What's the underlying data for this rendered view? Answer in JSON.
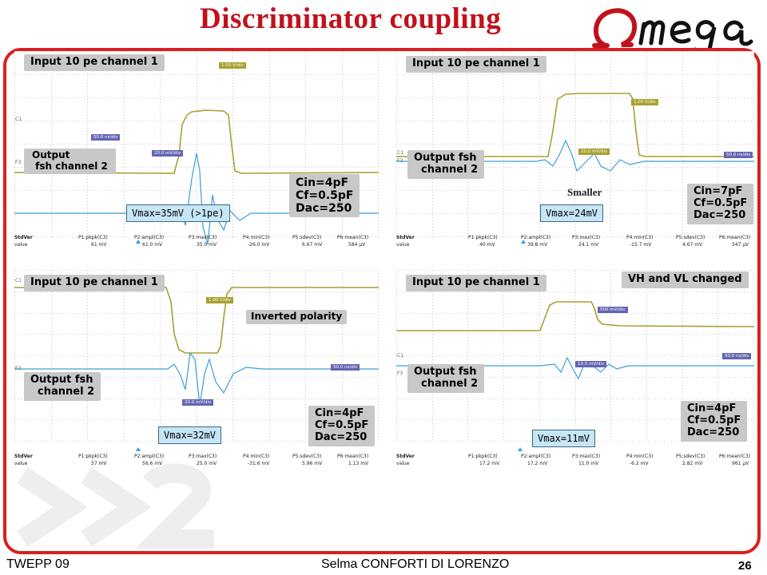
{
  "slide_title": "Discriminator coupling",
  "logo_text": "Omega",
  "footer": {
    "left": "TWEPP 09",
    "center": "Selma CONFORTI DI LORENZO",
    "page": "26"
  },
  "annotation_smaller": "Smaller",
  "colors": {
    "accent": "#c0121c",
    "frame": "#d92020",
    "trace_input": "#a8a030",
    "trace_output": "#3aa0d8",
    "label_bg": "#c8c8c8",
    "vbox_bg": "#c6e6f6"
  },
  "panels": [
    {
      "input_label": "Input 10 pe channel 1",
      "output_label": "Output\n fsh channel 2",
      "extra_label": "",
      "params": "Cin=4pF\nCf=0.5pF\nDac=250",
      "vmax": "Vmax=35mV (>1pe)",
      "ch_markers": [
        "C1",
        "F3"
      ],
      "scale_tags": [
        "1.00 V/div",
        "50.0 ns/div",
        "20.0 mV/div"
      ],
      "meas_headers": [
        "StdVer",
        "P1:pkpk(C3)",
        "P2:ampl(C3)",
        "P3:max(C3)",
        "P4:min(C3)",
        "P5:sdev(C3)",
        "P6:mean(C3)"
      ],
      "meas_values": [
        "value",
        "61 mV",
        "61.0 mV",
        "35.0 mV",
        "-26.0 mV",
        "6.67 mV",
        "584 µV"
      ]
    },
    {
      "input_label": "Input 10 pe channel 1",
      "output_label": "Output fsh\n  channel 2",
      "extra_label": "",
      "params": "Cin=7pF\nCf=0.5pF\nDac=250",
      "vmax": "Vmax=24mV",
      "ch_markers": [
        "C1",
        "F3"
      ],
      "scale_tags": [
        "1.00 V/div",
        "50.0 ns/div",
        "20.0 mV/div"
      ],
      "meas_headers": [
        "StdVer",
        "P1:pkpk(C3)",
        "P2:ampl(C3)",
        "P3:max(C3)",
        "P4:min(C3)",
        "P5:sdev(C3)",
        "P6:mean(C3)"
      ],
      "meas_values": [
        "value",
        "40 mV",
        "39.8 mV",
        "24.1 mV",
        "-15.7 mV",
        "4.67 mV",
        "347 µV"
      ]
    },
    {
      "input_label": "Input 10 pe channel 1",
      "output_label": "Output fsh\n  channel 2",
      "extra_label": "Inverted polarity",
      "params": "Cin=4pF\nCf=0.5pF\nDac=250",
      "vmax": "Vmax=32mV",
      "ch_markers": [
        "C1",
        "F3"
      ],
      "scale_tags": [
        "1.00 V/div",
        "50.0 ns/div",
        "20.0 mV/div"
      ],
      "meas_headers": [
        "StdVer",
        "P1:pkpk(C3)",
        "P2:ampl(C3)",
        "P3:max(C3)",
        "P4:min(C3)",
        "P5:sdev(C3)",
        "P6:mean(C3)"
      ],
      "meas_values": [
        "value",
        "57 mV",
        "56.6 mV",
        "25.0 mV",
        "-31.6 mV",
        "5.96 mV",
        "1.13 mV"
      ]
    },
    {
      "input_label": "Input 10 pe channel 1",
      "output_label": "Output fsh\n  channel 2",
      "extra_label": "VH and VL changed",
      "params": "Cin=4pF\nCf=0.5pF\nDac=250",
      "vmax": "Vmax=11mV",
      "ch_markers": [
        "C1",
        "F3"
      ],
      "scale_tags": [
        "500 mV/div",
        "50.0 ns/div",
        "10.0 mV/div"
      ],
      "meas_headers": [
        "StdVer",
        "P1:pkpk(C3)",
        "P2:ampl(C3)",
        "P3:max(C3)",
        "P4:min(C3)",
        "P5:sdev(C3)",
        "P6:mean(C3)"
      ],
      "meas_values": [
        "value",
        "17.2 mV",
        "17.2 mV",
        "11.0 mV",
        "-6.2 mV",
        "2.82 mV",
        "961 µV"
      ]
    }
  ]
}
